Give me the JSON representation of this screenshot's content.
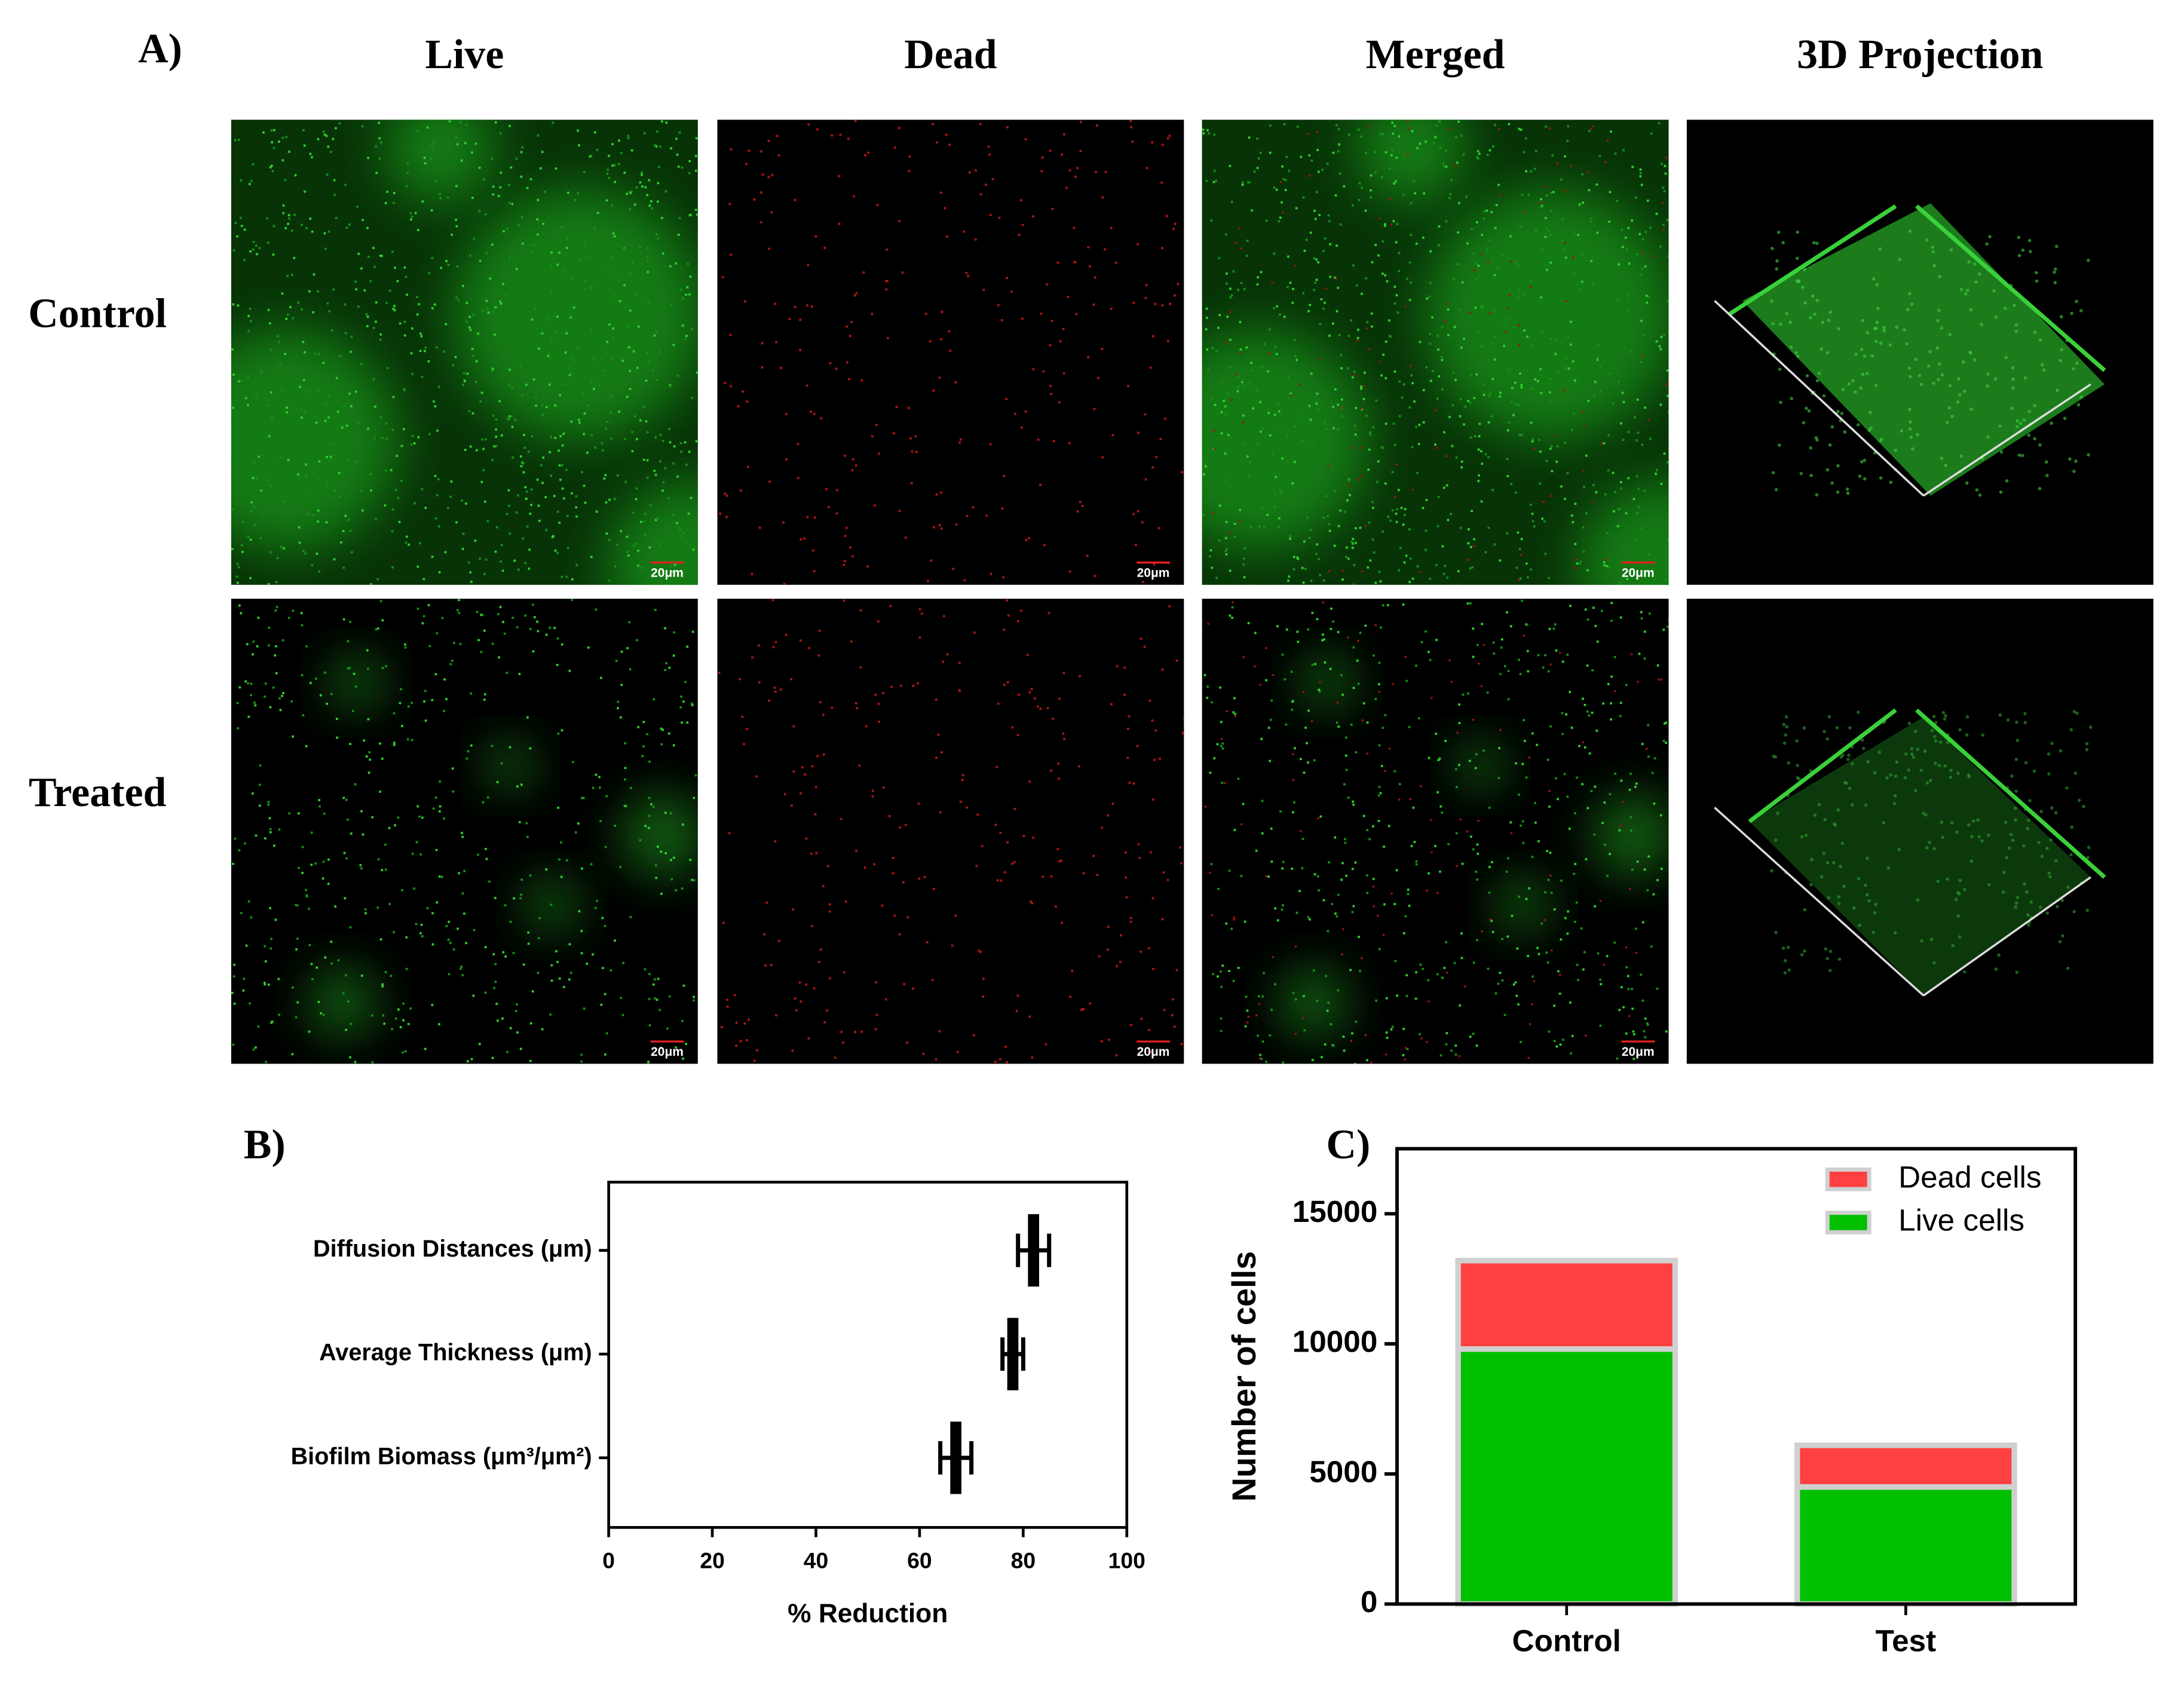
{
  "panel_a": {
    "label": "A)",
    "columns": [
      "Live",
      "Dead",
      "Merged",
      "3D Projection"
    ],
    "rows": [
      "Control",
      "Treated"
    ],
    "scale_bar": "20μm"
  },
  "chart_data": [
    {
      "type": "errorbar",
      "panel_label": "B)",
      "categories": [
        "Diffusion Distances (μm)",
        "Average Thickness (μm)",
        "Biofilm Biomass (μm³/μm²)"
      ],
      "values": [
        82,
        78,
        67
      ],
      "errors": [
        3,
        2,
        3
      ],
      "color": "#000000",
      "xlim": [
        0,
        100
      ],
      "xticks": [
        0,
        20,
        40,
        60,
        80,
        100
      ],
      "xlabel": "% Reduction"
    },
    {
      "type": "stacked_bar",
      "panel_label": "C)",
      "categories": [
        "Control",
        "Test"
      ],
      "series": [
        {
          "name": "Live cells",
          "color": "#00c000",
          "values": [
            9800,
            4500
          ]
        },
        {
          "name": "Dead cells",
          "color": "#ff4040",
          "values": [
            3400,
            1600
          ]
        }
      ],
      "ylim": [
        0,
        17500
      ],
      "yticks": [
        0,
        5000,
        10000,
        15000
      ],
      "ylabel": "Number of cells",
      "legend": "upper right",
      "edge_color": "#d0d0d0"
    }
  ]
}
